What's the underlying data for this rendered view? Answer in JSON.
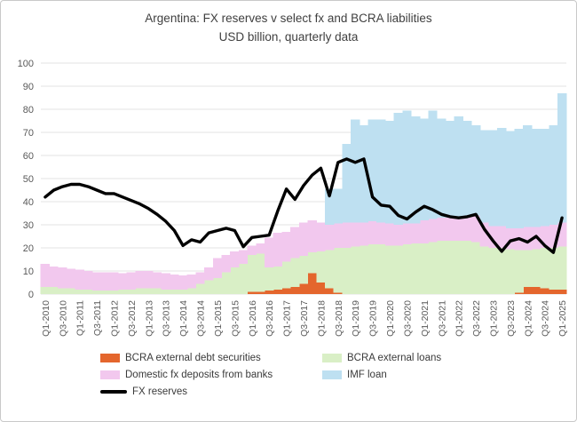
{
  "title": {
    "line1": "Argentina: FX reserves v select fx and BCRA liabilities",
    "line2": "USD billion, quarterly data"
  },
  "chart_data": {
    "type": "bar",
    "subtype": "stacked-columns-with-line-overlay",
    "title": "Argentina: FX reserves v select fx and BCRA liabilities",
    "subtitle": "USD billion, quarterly data",
    "xlabel": "",
    "ylabel": "",
    "ylim": [
      0,
      100
    ],
    "yticks": [
      0,
      10,
      20,
      30,
      40,
      50,
      60,
      70,
      80,
      90,
      100
    ],
    "grid": true,
    "legend_position": "bottom",
    "tick_label_color": "#595959",
    "grid_color": "#e3e3e3",
    "x_tick_every": 2,
    "categories": [
      "Q1-2010",
      "Q2-2010",
      "Q3-2010",
      "Q4-2010",
      "Q1-2011",
      "Q2-2011",
      "Q3-2011",
      "Q4-2011",
      "Q1-2012",
      "Q2-2012",
      "Q3-2012",
      "Q4-2012",
      "Q1-2013",
      "Q2-2013",
      "Q3-2013",
      "Q4-2013",
      "Q1-2014",
      "Q2-2014",
      "Q3-2014",
      "Q4-2014",
      "Q1-2015",
      "Q2-2015",
      "Q3-2015",
      "Q4-2015",
      "Q1-2016",
      "Q2-2016",
      "Q3-2016",
      "Q4-2016",
      "Q1-2017",
      "Q2-2017",
      "Q3-2017",
      "Q4-2017",
      "Q1-2018",
      "Q2-2018",
      "Q3-2018",
      "Q4-2018",
      "Q1-2019",
      "Q2-2019",
      "Q3-2019",
      "Q4-2019",
      "Q1-2020",
      "Q2-2020",
      "Q3-2020",
      "Q4-2020",
      "Q1-2021",
      "Q2-2021",
      "Q3-2021",
      "Q4-2021",
      "Q1-2022",
      "Q2-2022",
      "Q3-2022",
      "Q4-2022",
      "Q1-2023",
      "Q2-2023",
      "Q3-2023",
      "Q4-2023",
      "Q1-2024",
      "Q2-2024",
      "Q3-2024",
      "Q4-2024",
      "Q1-2025"
    ],
    "series": [
      {
        "name": "BCRA external debt securities",
        "color": "#e4662d",
        "values": [
          0,
          0,
          0,
          0,
          0,
          0,
          0,
          0,
          0,
          0,
          0,
          0,
          0,
          0,
          0,
          0,
          0,
          0,
          0,
          0,
          0,
          0,
          0,
          0,
          1,
          1,
          1.5,
          2,
          2.5,
          3,
          4.5,
          9,
          5,
          2.5,
          0.5,
          0,
          0,
          0,
          0,
          0,
          0,
          0,
          0,
          0,
          0,
          0,
          0,
          0,
          0,
          0,
          0,
          0,
          0,
          0,
          0,
          0.5,
          3,
          3,
          2.5,
          2,
          2
        ]
      },
      {
        "name": "BCRA external loans",
        "color": "#d9efc6",
        "values": [
          3,
          3,
          2.5,
          2.5,
          2,
          2,
          1.5,
          1.5,
          1.5,
          2,
          2,
          2.5,
          2.5,
          2.5,
          2,
          2,
          2,
          2.5,
          4.5,
          6,
          7,
          9.5,
          11.5,
          13,
          16,
          16.5,
          10,
          10,
          11.5,
          12.5,
          12,
          9,
          13.5,
          16.5,
          19.5,
          20,
          20.5,
          21,
          21.5,
          21.5,
          21,
          21,
          21.5,
          22,
          22,
          22.5,
          23,
          23,
          23,
          23,
          22.5,
          20.5,
          20,
          20,
          19.5,
          18.5,
          16,
          16.5,
          17.5,
          18,
          18.5
        ]
      },
      {
        "name": "Domestic fx deposits from banks",
        "color": "#f2c8ee",
        "values": [
          10,
          9,
          9,
          8.5,
          8.5,
          8,
          8,
          8,
          8,
          7,
          7.5,
          7.5,
          7.5,
          7,
          7,
          6.5,
          6,
          6,
          5,
          5.5,
          8.5,
          7.5,
          7,
          6,
          4,
          4.5,
          13,
          14.5,
          13,
          13.5,
          14.5,
          14,
          12.5,
          11,
          10.5,
          11,
          10.5,
          10,
          10,
          9.5,
          9.5,
          9,
          9,
          8.5,
          10,
          10,
          10,
          10,
          10,
          11,
          11.5,
          10.5,
          9.5,
          9.5,
          9,
          9.5,
          10,
          9.5,
          9.5,
          10,
          10.5
        ]
      },
      {
        "name": "IMF loan",
        "color": "#bee0f1",
        "values": [
          0,
          0,
          0,
          0,
          0,
          0,
          0,
          0,
          0,
          0,
          0,
          0,
          0,
          0,
          0,
          0,
          0,
          0,
          0,
          0,
          0,
          0,
          0,
          0,
          0,
          0,
          0,
          0,
          0,
          0,
          0,
          0,
          0,
          15.5,
          15,
          34,
          44.5,
          42,
          44,
          44.5,
          44.5,
          48.5,
          49,
          46.5,
          44,
          47,
          43,
          42,
          44,
          41,
          39,
          40,
          41.5,
          42.5,
          42,
          43,
          44,
          42.5,
          42,
          43,
          56
        ]
      }
    ],
    "line": {
      "name": "FX reserves",
      "color": "#000000",
      "values": [
        42,
        45,
        46.5,
        47.5,
        47.5,
        46.5,
        45,
        43.5,
        43.5,
        42,
        40.5,
        39,
        37,
        34.5,
        31.5,
        27.5,
        21,
        23.5,
        22.5,
        26.5,
        27.5,
        28.5,
        27.5,
        20.5,
        24.5,
        25,
        25.5,
        36,
        45.5,
        41,
        47,
        51.5,
        54.5,
        42.5,
        57,
        58.5,
        57,
        58.5,
        42,
        38.5,
        38,
        34,
        32.5,
        35.5,
        38,
        36.5,
        34.5,
        33.5,
        33,
        33.5,
        34.5,
        28,
        23,
        18.5,
        23,
        24,
        22.5,
        25,
        21,
        18,
        33
      ]
    }
  }
}
